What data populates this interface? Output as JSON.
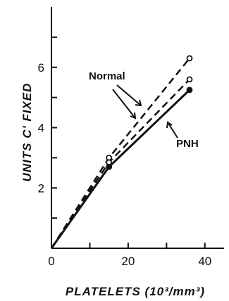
{
  "chart_data": {
    "type": "line",
    "title": "",
    "xlabel": "PLATELETS (10³/mm³)",
    "ylabel": "UNITS C' FIXED",
    "xlim": [
      0,
      45
    ],
    "ylim": [
      0,
      8
    ],
    "xticks": [
      0,
      20,
      40
    ],
    "yticks": [
      2,
      4,
      6
    ],
    "series": [
      {
        "x": [
          0,
          15,
          36
        ],
        "y": [
          0,
          3.0,
          6.3
        ],
        "style": "dashed",
        "marker": "open-circle"
      },
      {
        "x": [
          0,
          15,
          36
        ],
        "y": [
          0,
          2.85,
          5.6
        ],
        "style": "dashed",
        "marker": "open-circle"
      },
      {
        "x": [
          0,
          15,
          36
        ],
        "y": [
          0,
          2.7,
          5.25
        ],
        "style": "solid",
        "marker": "filled-circle"
      }
    ],
    "annotations": [
      {
        "text": "Normal"
      },
      {
        "text": "PNH"
      }
    ]
  },
  "colors": {
    "ink": "#111111",
    "background": "#ffffff"
  }
}
